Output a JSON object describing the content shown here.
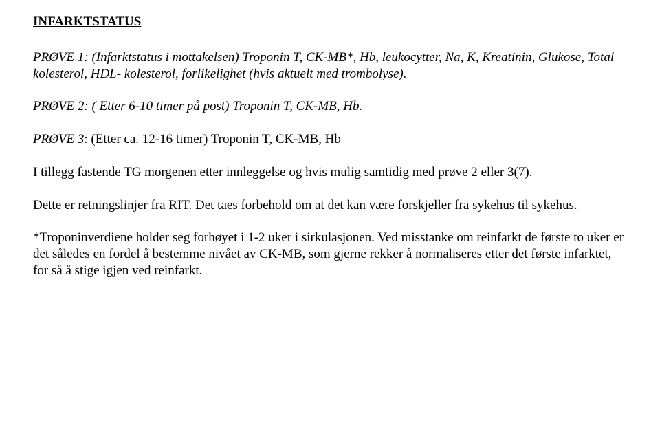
{
  "doc": {
    "title": "INFARKTSTATUS",
    "prove1_label": "PRØVE 1: (Infarktstatus i mottakelsen)",
    "prove1_rest": " Troponin T, CK-MB*, Hb, leukocytter, Na, K, Kreatinin, Glukose, Total kolesterol, HDL- kolesterol, forlikelighet (hvis aktuelt med trombolyse).",
    "prove2_label": "PRØVE 2: (",
    "prove2_rest": " Etter 6-10 timer på post) Troponin T, CK-MB, Hb.",
    "prove3_label": "PRØVE 3",
    "prove3_rest": ": (Etter ca. 12-16 timer) Troponin T, CK-MB, Hb",
    "tillegg": "I tillegg fastende TG morgenen etter innleggelse og hvis mulig samtidig med prøve 2 eller 3(7).",
    "retning": "Dette er retningslinjer fra RIT. Det taes forbehold om at det kan være forskjeller fra sykehus til sykehus.",
    "footnote": "*Troponinverdiene holder seg forhøyet i 1-2 uker i sirkulasjonen. Ved misstanke om reinfarkt de første to uker er det således en fordel å bestemme nivået av CK-MB, som gjerne rekker å normaliseres etter det første infarktet, for så å stige igjen ved reinfarkt."
  },
  "style": {
    "font_family": "Times New Roman",
    "base_fontsize_pt": 14,
    "text_color": "#000000",
    "background_color": "#ffffff"
  }
}
